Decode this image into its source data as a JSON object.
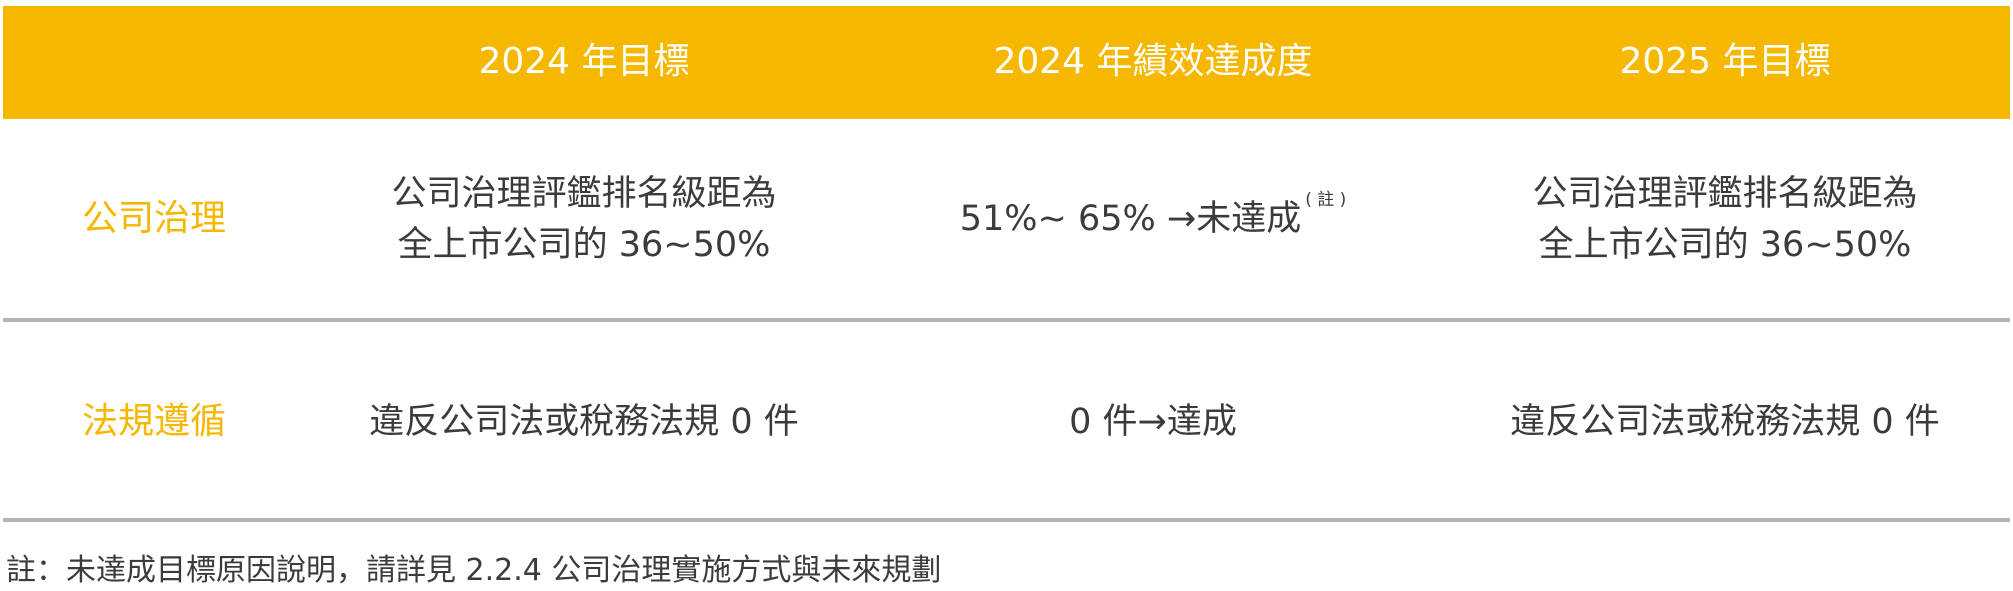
{
  "header": {
    "columns": [
      "",
      "2024 年目標",
      "2024 年績效達成度",
      "2025 年目標"
    ],
    "background_color": "#f5b700"
  },
  "rows": [
    {
      "label": "公司治理",
      "target_2024_line1": "公司治理評鑑排名級距為",
      "target_2024_line2": "全上市公司的 36~50%",
      "performance_2024": "51%~ 65% →未達成",
      "performance_note_mark": "( 註 )",
      "target_2025_line1": "公司治理評鑑排名級距為",
      "target_2025_line2": "全上市公司的 36~50%"
    },
    {
      "label": "法規遵循",
      "target_2024": "違反公司法或稅務法規 0 件",
      "performance_2024": "0 件→達成",
      "target_2025": "違反公司法或稅務法規 0 件"
    }
  ],
  "footnote": "註：未達成目標原因說明，請詳見 2.2.4 公司治理實施方式與未來規劃",
  "colors": {
    "accent": "#f5b700",
    "text": "#3e3a39",
    "divider": "#b5b5b5"
  }
}
